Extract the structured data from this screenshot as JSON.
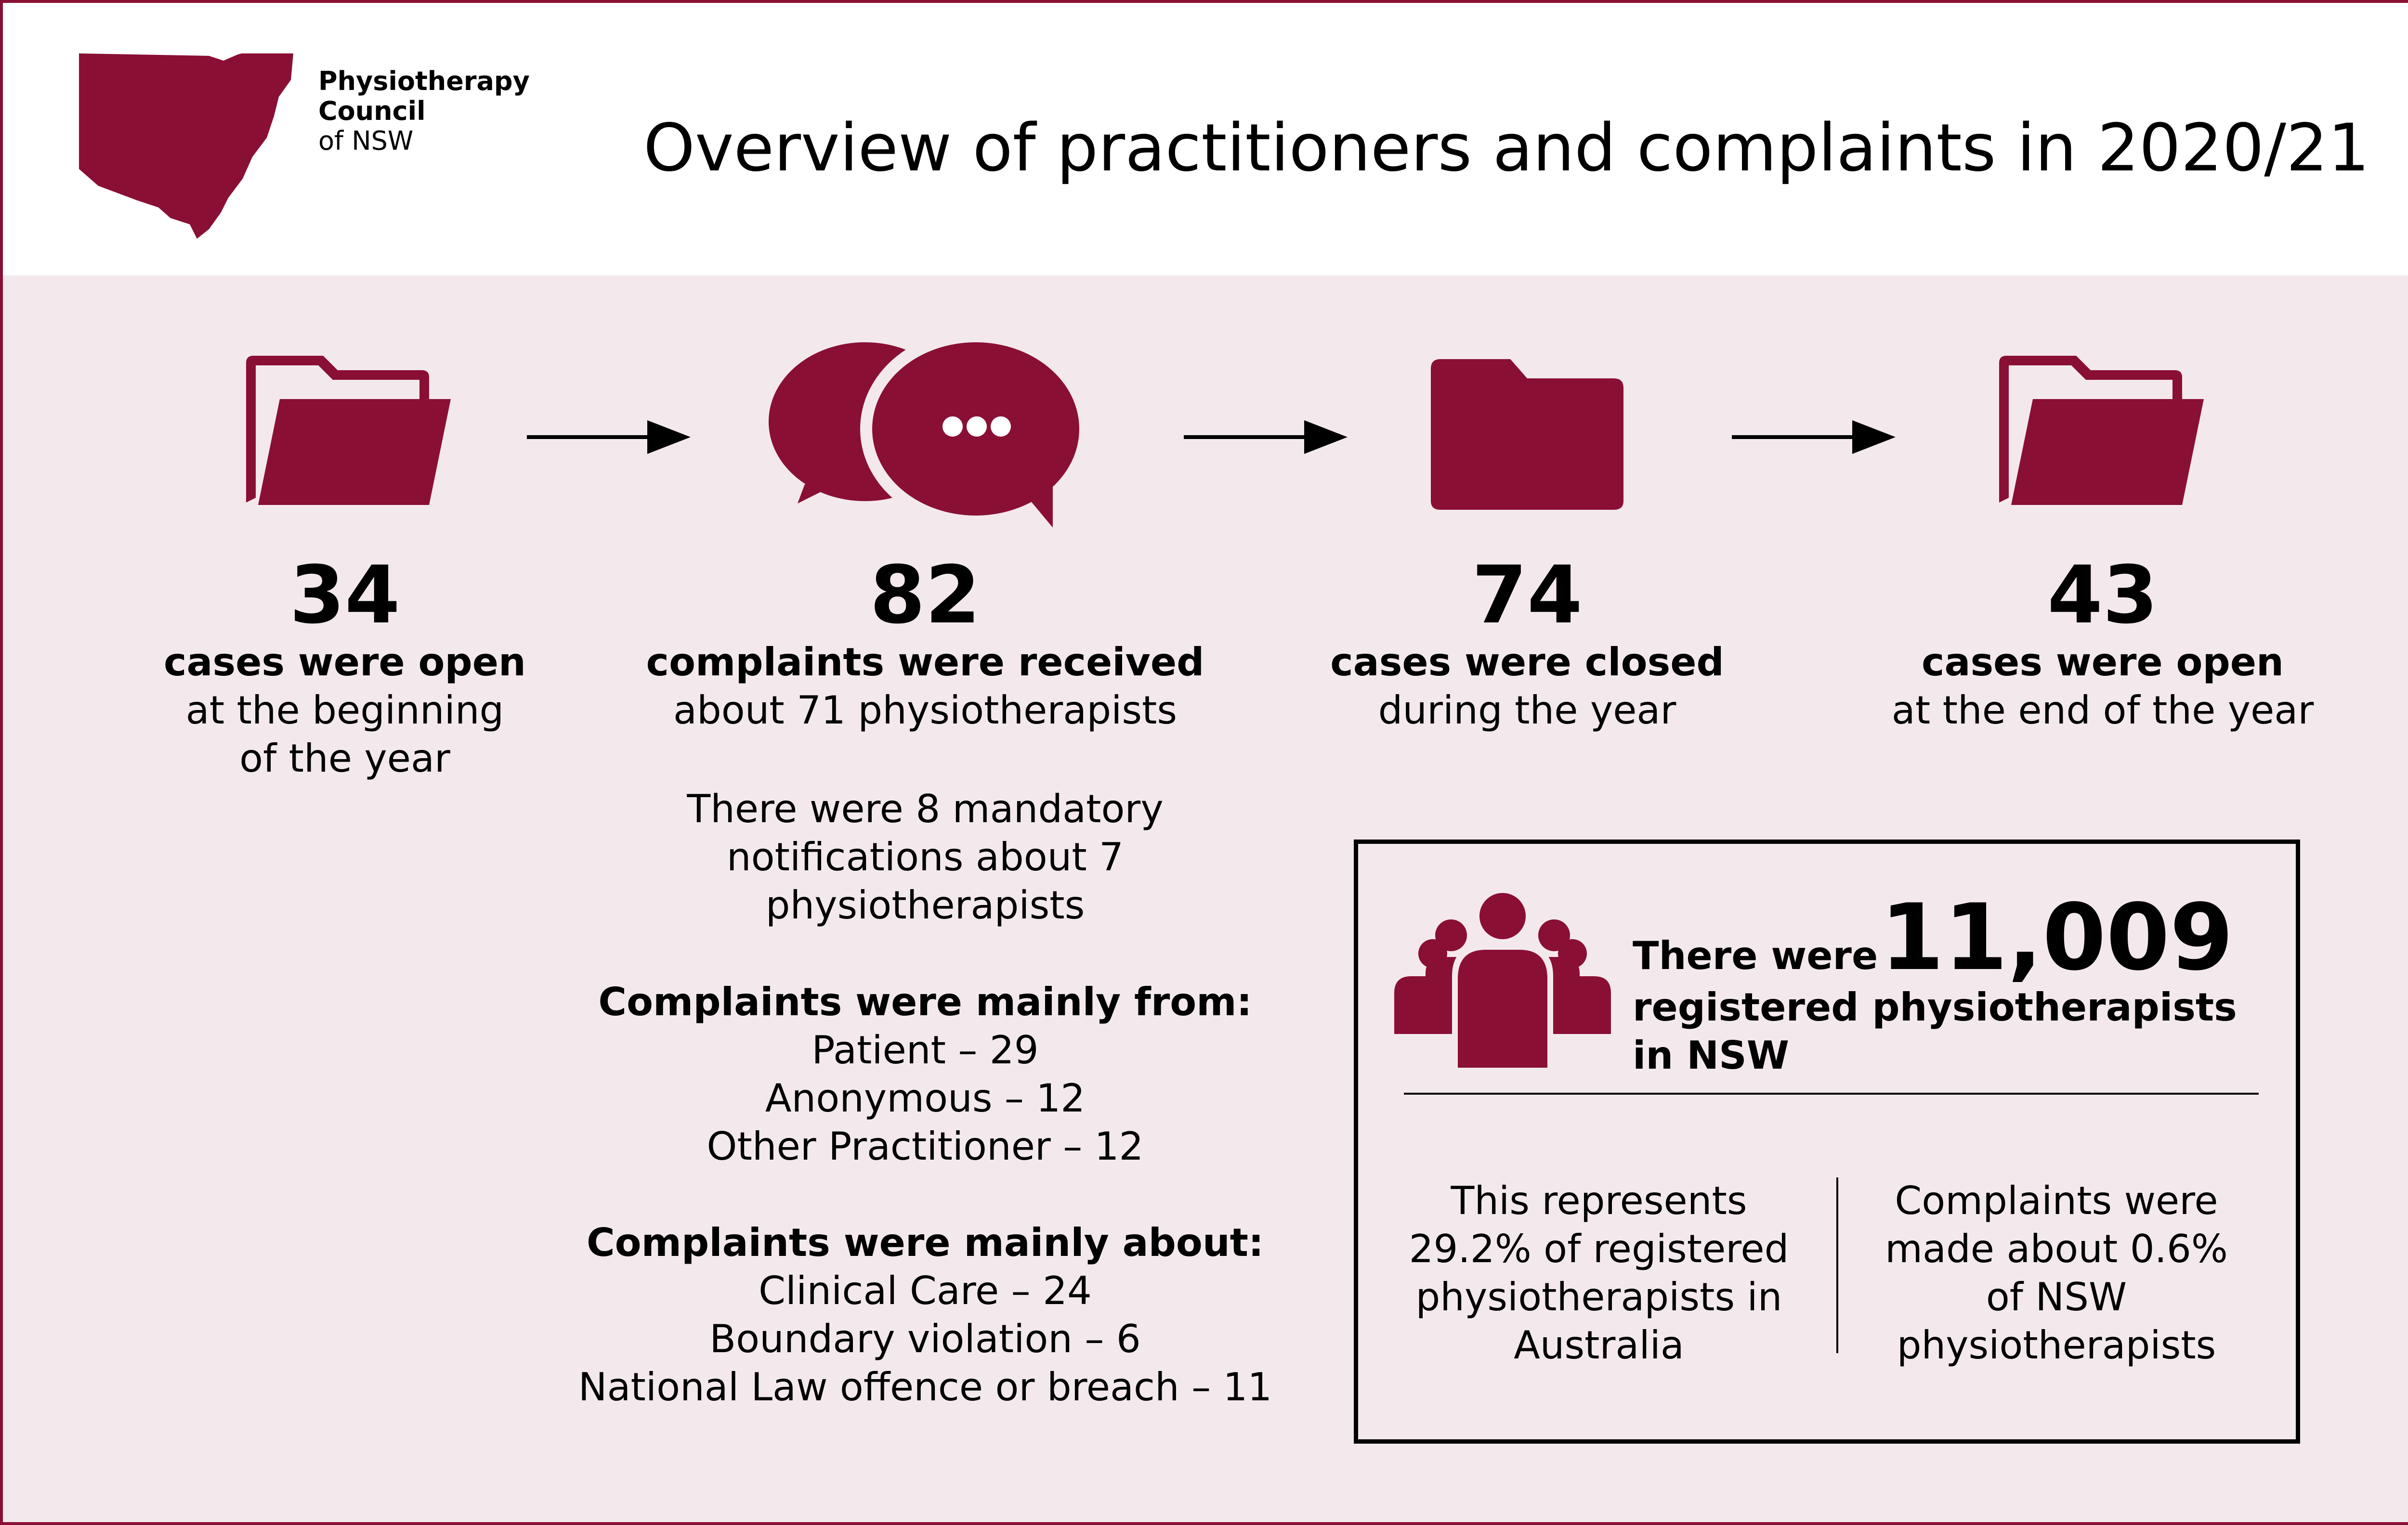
{
  "header": {
    "logo": {
      "line1": "Physiotherapy",
      "line2": "Council",
      "line3": "of NSW"
    },
    "title": "Overview of practitioners and complaints in 2020/21"
  },
  "colors": {
    "brand": "#8a0f35",
    "background": "#f3e9ec",
    "text": "#000000"
  },
  "flow": {
    "icons": [
      "open-folder-icon",
      "speech-bubbles-icon",
      "closed-folder-icon",
      "open-folder-icon"
    ],
    "stats": [
      {
        "number": "34",
        "label": "cases were open",
        "sub1": "at the beginning",
        "sub2": "of the year"
      },
      {
        "number": "82",
        "label": "complaints were received",
        "sub1": "about 71 physiotherapists"
      },
      {
        "number": "74",
        "label": "cases were closed",
        "sub1": "during the year"
      },
      {
        "number": "43",
        "label": "cases were open",
        "sub1": "at the end of the year"
      }
    ]
  },
  "notifications": {
    "line1": "There were 8 mandatory",
    "line2": "notifications about 7",
    "line3": "physiotherapists"
  },
  "complaints_from": {
    "heading": "Complaints were mainly from:",
    "items": [
      "Patient – 29",
      "Anonymous – 12",
      "Other Practitioner – 12"
    ]
  },
  "complaints_about": {
    "heading": "Complaints were mainly about:",
    "items": [
      "Clinical Care – 24",
      "Boundary violation – 6",
      "National Law offence or breach –  11"
    ]
  },
  "registered": {
    "prefix": "There were",
    "count": "11,009",
    "line2": "registered physiotherapists",
    "line3": "in NSW",
    "left": {
      "line1": "This represents",
      "line2": "29.2% of registered",
      "line3": "physiotherapists in",
      "line4": "Australia"
    },
    "right": {
      "line1": "Complaints were",
      "line2": "made about 0.6%",
      "line3": "of NSW",
      "line4": "physiotherapists"
    }
  }
}
